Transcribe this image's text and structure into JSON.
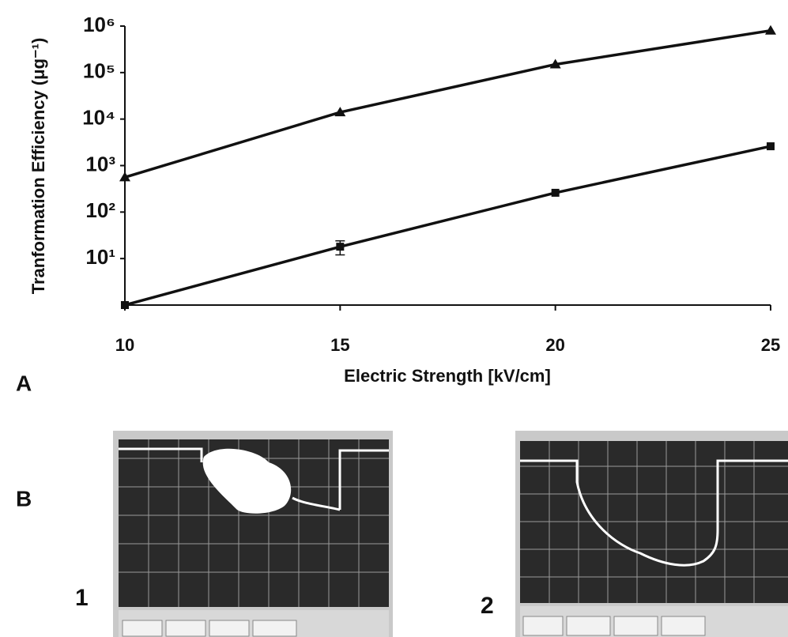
{
  "chart_data": {
    "type": "line",
    "ylabel": "Tranformation Efficiency (μg⁻¹)",
    "xlabel": "Electric Strength [kV/cm]",
    "x": [
      10,
      15,
      20,
      25
    ],
    "series": [
      {
        "color": "#111111",
        "marker": "triangle",
        "values": [
          560,
          14000,
          150000,
          800000
        ]
      },
      {
        "color": "#111111",
        "marker": "square",
        "values": [
          1,
          18,
          260,
          2600
        ],
        "errors": [
          null,
          6,
          null,
          null
        ]
      }
    ],
    "xlim": [
      10,
      25
    ],
    "xticks": [
      10,
      15,
      20,
      25
    ],
    "ylim": [
      1,
      1000000
    ],
    "log_y": true,
    "yticks": [
      {
        "value": 10,
        "label": "10¹"
      },
      {
        "value": 100,
        "label": "10²"
      },
      {
        "value": 1000,
        "label": "10³"
      },
      {
        "value": 10000,
        "label": "10⁴"
      },
      {
        "value": 100000,
        "label": "10⁵"
      },
      {
        "value": 1000000,
        "label": "10⁶"
      }
    ]
  },
  "panels": {
    "a": "A",
    "b": "B",
    "photo_1": "1",
    "photo_2": "2"
  }
}
